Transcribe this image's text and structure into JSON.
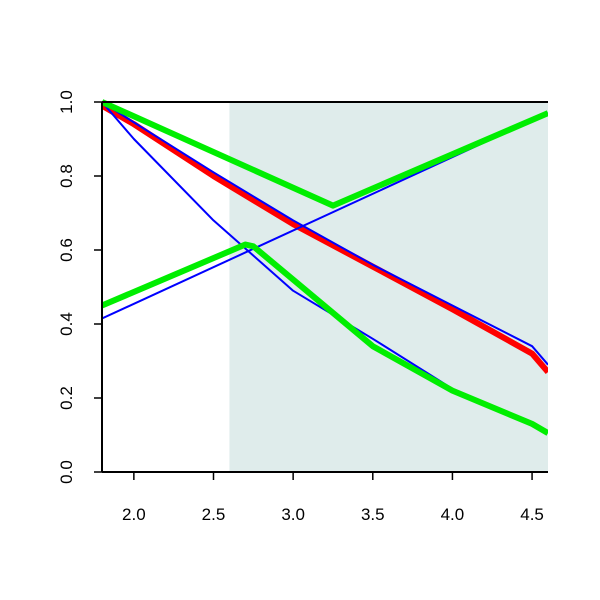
{
  "chart_data": {
    "type": "line",
    "title": "",
    "xlabel": "",
    "ylabel": "",
    "xlim": [
      1.8,
      4.6
    ],
    "ylim": [
      0.0,
      1.0
    ],
    "x_ticks": [
      "2.0",
      "2.5",
      "3.0",
      "3.5",
      "4.0",
      "4.5"
    ],
    "y_ticks": [
      "0.0",
      "0.2",
      "0.4",
      "0.6",
      "0.8",
      "1.0"
    ],
    "grid": false,
    "legend": "none",
    "shaded_region": {
      "x": [
        2.6,
        4.6
      ],
      "color": "#dfeceb"
    },
    "series": [
      {
        "color": "#ff0000",
        "width": 6,
        "x": [
          1.8,
          2.0,
          2.5,
          3.0,
          3.5,
          4.0,
          4.5,
          4.6
        ],
        "y": [
          0.99,
          0.94,
          0.8,
          0.67,
          0.555,
          0.44,
          0.32,
          0.27
        ]
      },
      {
        "color": "#0000ff",
        "width": 2,
        "x": [
          1.8,
          2.0,
          2.5,
          3.0,
          3.5,
          4.0,
          4.5,
          4.6
        ],
        "y": [
          1.0,
          0.945,
          0.81,
          0.68,
          0.56,
          0.45,
          0.34,
          0.29
        ]
      },
      {
        "color": "#0000ff",
        "width": 2,
        "x": [
          1.8,
          2.0,
          2.5,
          3.0,
          3.5,
          4.0,
          4.5,
          4.6
        ],
        "y": [
          1.0,
          0.9,
          0.68,
          0.49,
          0.36,
          0.225,
          0.13,
          0.11
        ]
      },
      {
        "color": "#0000ff",
        "width": 2,
        "x": [
          1.8,
          4.6
        ],
        "y": [
          0.415,
          0.97
        ]
      },
      {
        "color": "#00ee00",
        "width": 6,
        "x": [
          1.8,
          3.25,
          4.6
        ],
        "y": [
          1.0,
          0.72,
          0.97
        ]
      },
      {
        "color": "#00ee00",
        "width": 6,
        "x": [
          1.8,
          2.7,
          2.75,
          3.0,
          3.5,
          4.0,
          4.5,
          4.6
        ],
        "y": [
          0.45,
          0.615,
          0.61,
          0.52,
          0.34,
          0.22,
          0.13,
          0.105
        ]
      }
    ]
  }
}
